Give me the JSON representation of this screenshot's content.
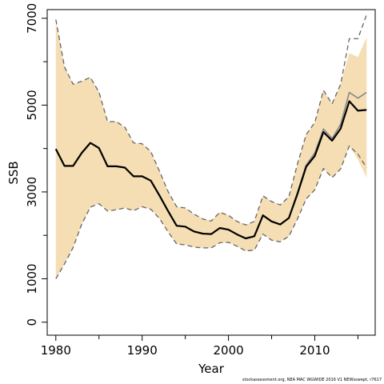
{
  "chart_data": {
    "type": "line",
    "xlabel": "Year",
    "ylabel": "SSB",
    "xlim": [
      1979,
      2017
    ],
    "ylim": [
      -300,
      7200
    ],
    "xticks": [
      1980,
      1990,
      2000,
      2010
    ],
    "yticks": [
      0,
      1000,
      3000,
      5000,
      7000
    ],
    "grid": false,
    "x": [
      1980,
      1981,
      1982,
      1983,
      1984,
      1985,
      1986,
      1987,
      1988,
      1989,
      1990,
      1991,
      1992,
      1993,
      1994,
      1995,
      1996,
      1997,
      1998,
      1999,
      2000,
      2001,
      2002,
      2003,
      2004,
      2005,
      2006,
      2007,
      2008,
      2009,
      2010,
      2011,
      2012,
      2013,
      2014,
      2015,
      2016
    ],
    "series": [
      {
        "role": "estimate",
        "color": "#000000",
        "values": [
          3990,
          3600,
          3600,
          3900,
          4130,
          4010,
          3590,
          3590,
          3560,
          3360,
          3360,
          3260,
          2920,
          2560,
          2220,
          2200,
          2090,
          2040,
          2030,
          2170,
          2130,
          2020,
          1930,
          1980,
          2460,
          2320,
          2250,
          2400,
          2960,
          3580,
          3830,
          4380,
          4180,
          4460,
          5090,
          4870,
          4890
        ]
      },
      {
        "role": "alternative-estimate",
        "color": "#888888",
        "values": [
          3990,
          3600,
          3600,
          3900,
          4130,
          4010,
          3590,
          3590,
          3560,
          3360,
          3360,
          3260,
          2920,
          2560,
          2220,
          2200,
          2090,
          2040,
          2030,
          2170,
          2130,
          2020,
          1930,
          1980,
          2460,
          2320,
          2250,
          2400,
          2990,
          3620,
          3900,
          4450,
          4230,
          4560,
          5290,
          5160,
          5290
        ]
      },
      {
        "role": "upper-bound",
        "color": "#666666",
        "dashed": true,
        "values": [
          6970,
          5880,
          5480,
          5550,
          5640,
          5300,
          4620,
          4620,
          4490,
          4130,
          4110,
          3930,
          3480,
          3010,
          2660,
          2630,
          2490,
          2380,
          2330,
          2530,
          2460,
          2320,
          2240,
          2320,
          2910,
          2780,
          2700,
          2890,
          3650,
          4320,
          4600,
          5340,
          5030,
          5480,
          6530,
          6530,
          7080
        ]
      },
      {
        "role": "lower-bound",
        "color": "#666666",
        "dashed": true,
        "values": [
          1000,
          1340,
          1720,
          2260,
          2650,
          2730,
          2560,
          2590,
          2630,
          2570,
          2660,
          2600,
          2390,
          2080,
          1800,
          1780,
          1730,
          1710,
          1710,
          1830,
          1840,
          1750,
          1640,
          1660,
          2030,
          1890,
          1850,
          1980,
          2380,
          2840,
          3050,
          3540,
          3330,
          3530,
          4060,
          3870,
          3560
        ]
      }
    ],
    "band": {
      "color": "#f5deb3",
      "upper": [
        6970,
        5880,
        5480,
        5550,
        5640,
        5300,
        4620,
        4620,
        4490,
        4130,
        4110,
        3930,
        3480,
        3010,
        2660,
        2630,
        2490,
        2380,
        2330,
        2530,
        2460,
        2320,
        2240,
        2320,
        2910,
        2780,
        2700,
        2890,
        3650,
        4320,
        4600,
        5340,
        5030,
        5480,
        6200,
        6110,
        6560
      ],
      "lower": [
        1000,
        1340,
        1720,
        2260,
        2650,
        2730,
        2560,
        2590,
        2630,
        2570,
        2660,
        2600,
        2390,
        2080,
        1800,
        1780,
        1730,
        1710,
        1710,
        1830,
        1840,
        1750,
        1640,
        1660,
        2030,
        1890,
        1850,
        1980,
        2380,
        2840,
        3050,
        3540,
        3330,
        3530,
        4060,
        3750,
        3330
      ]
    }
  },
  "footnote": "stockassessment.org, NEA MAC WGWIDE 2016 V1 NEWsswept, r7617"
}
